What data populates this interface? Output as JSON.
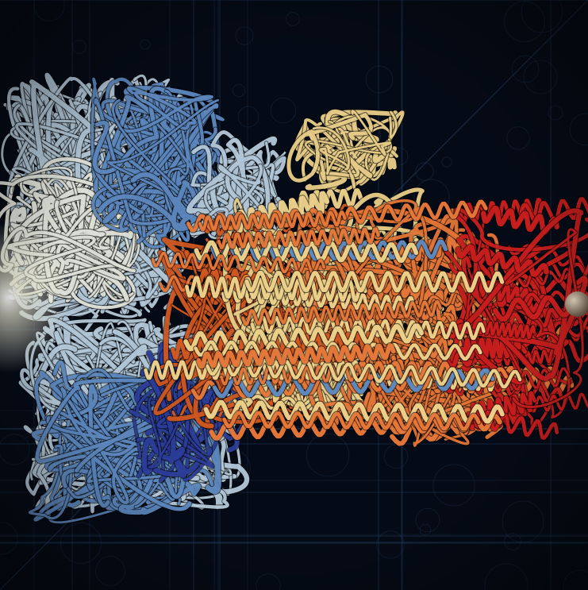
{
  "scene": {
    "subject": "protein-ribbon-structure",
    "palette": {
      "background": "#050b16",
      "grid": "#2a4a74",
      "glow": "#f4f2dc",
      "blue_dark": "#2e3fa0",
      "blue": "#5f8cc4",
      "blue_light": "#b8cee0",
      "pale": "#e6e9df",
      "cream": "#f0d58e",
      "orange": "#ea7a3a",
      "orange_deep": "#d65a22",
      "red": "#cf1f1f",
      "sphere": "#9a8670"
    }
  }
}
